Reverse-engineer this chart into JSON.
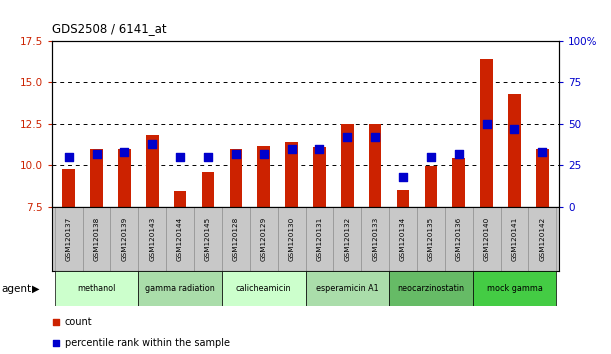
{
  "title": "GDS2508 / 6141_at",
  "samples": [
    "GSM120137",
    "GSM120138",
    "GSM120139",
    "GSM120143",
    "GSM120144",
    "GSM120145",
    "GSM120128",
    "GSM120129",
    "GSM120130",
    "GSM120131",
    "GSM120132",
    "GSM120133",
    "GSM120134",
    "GSM120135",
    "GSM120136",
    "GSM120140",
    "GSM120141",
    "GSM120142"
  ],
  "bar_values": [
    9.8,
    11.0,
    11.0,
    11.85,
    8.45,
    9.6,
    11.0,
    11.15,
    11.4,
    11.1,
    12.5,
    12.5,
    8.5,
    9.95,
    10.45,
    16.4,
    14.3,
    11.0
  ],
  "dot_values": [
    30,
    32,
    33,
    38,
    30,
    30,
    32,
    32,
    35,
    35,
    42,
    42,
    18,
    30,
    32,
    50,
    47,
    33
  ],
  "ylim_left": [
    7.5,
    17.5
  ],
  "ylim_right": [
    0,
    100
  ],
  "yticks_left": [
    7.5,
    10.0,
    12.5,
    15.0,
    17.5
  ],
  "yticks_right": [
    0,
    25,
    50,
    75,
    100
  ],
  "bar_color": "#cc2200",
  "dot_color": "#0000cc",
  "background_color": "#ffffff",
  "agent_groups": [
    {
      "label": "methanol",
      "start": 0,
      "end": 3,
      "color": "#ccffcc"
    },
    {
      "label": "gamma radiation",
      "start": 3,
      "end": 6,
      "color": "#aaddaa"
    },
    {
      "label": "calicheamicin",
      "start": 6,
      "end": 9,
      "color": "#ccffcc"
    },
    {
      "label": "esperamicin A1",
      "start": 9,
      "end": 12,
      "color": "#aaddaa"
    },
    {
      "label": "neocarzinostatin",
      "start": 12,
      "end": 15,
      "color": "#66bb66"
    },
    {
      "label": "mock gamma",
      "start": 15,
      "end": 18,
      "color": "#44cc44"
    }
  ],
  "legend_count_label": "count",
  "legend_pct_label": "percentile rank within the sample",
  "agent_label": "agent",
  "xticklabel_bg": "#c8c8c8",
  "grid_yticks": [
    10.0,
    12.5,
    15.0
  ],
  "bar_width": 0.45,
  "dot_size": 28
}
